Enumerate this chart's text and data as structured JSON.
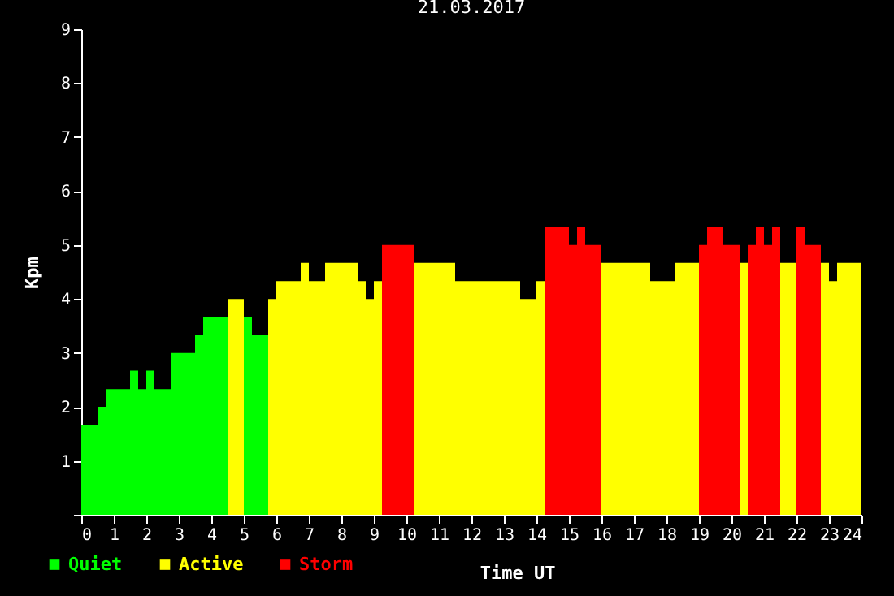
{
  "chart_data": {
    "type": "bar",
    "title": "21.03.2017",
    "xlabel": "Time UT",
    "ylabel": "Kpm",
    "x": [
      0,
      0.25,
      0.5,
      0.75,
      1,
      1.25,
      1.5,
      1.75,
      2,
      2.25,
      2.5,
      2.75,
      3,
      3.25,
      3.5,
      3.75,
      4,
      4.25,
      4.5,
      4.75,
      5,
      5.25,
      5.5,
      5.75,
      6,
      6.25,
      6.5,
      6.75,
      7,
      7.25,
      7.5,
      7.75,
      8,
      8.25,
      8.5,
      8.75,
      9,
      9.25,
      9.5,
      9.75,
      10,
      10.25,
      10.5,
      10.75,
      11,
      11.25,
      11.5,
      11.75,
      12,
      12.25,
      12.5,
      12.75,
      13,
      13.25,
      13.5,
      13.75,
      14,
      14.25,
      14.5,
      14.75,
      15,
      15.25,
      15.5,
      15.75,
      16,
      16.25,
      16.5,
      16.75,
      17,
      17.25,
      17.5,
      17.75,
      18,
      18.25,
      18.5,
      18.75,
      19,
      19.25,
      19.5,
      19.75,
      20,
      20.25,
      20.5,
      20.75,
      21,
      21.25,
      21.5,
      21.75,
      22,
      22.25,
      22.5,
      22.75,
      23,
      23.25,
      23.5,
      23.75
    ],
    "series": [
      {
        "name": "Quiet",
        "color": "#00ff00",
        "values": [
          1.67,
          1.67,
          2,
          2.33,
          2.33,
          2.33,
          2.67,
          2.33,
          2.67,
          2.33,
          2.33,
          3,
          3,
          3,
          3.33,
          3.67,
          3.67,
          3.67,
          null,
          null,
          3.67,
          3.33,
          3.33,
          null,
          null,
          null,
          null,
          null,
          null,
          null,
          null,
          null,
          null,
          null,
          null,
          null,
          null,
          null,
          null,
          null,
          null,
          null,
          null,
          null,
          null,
          null,
          null,
          null,
          null,
          null,
          null,
          null,
          null,
          null,
          null,
          null,
          null,
          null,
          null,
          null,
          null,
          null,
          null,
          null,
          null,
          null,
          null,
          null,
          null,
          null,
          null,
          null,
          null,
          null,
          null,
          null,
          null,
          null,
          null,
          null,
          null,
          null,
          null,
          null,
          null,
          null,
          null,
          null,
          null,
          null,
          null,
          null,
          null,
          null,
          null,
          null
        ]
      },
      {
        "name": "Active",
        "color": "#ffff00",
        "values": [
          null,
          null,
          null,
          null,
          null,
          null,
          null,
          null,
          null,
          null,
          null,
          null,
          null,
          null,
          null,
          null,
          null,
          null,
          4,
          4,
          null,
          null,
          null,
          4,
          4.33,
          4.33,
          4.33,
          4.67,
          4.33,
          4.33,
          4.67,
          4.67,
          4.67,
          4.67,
          4.33,
          4,
          4.33,
          null,
          null,
          null,
          null,
          4.67,
          4.67,
          4.67,
          4.67,
          4.67,
          4.33,
          4.33,
          4.33,
          4.33,
          4.33,
          4.33,
          4.33,
          4.33,
          4,
          4,
          4.33,
          null,
          null,
          null,
          null,
          null,
          null,
          null,
          4.67,
          4.67,
          4.67,
          4.67,
          4.67,
          4.67,
          4.33,
          4.33,
          4.33,
          4.67,
          4.67,
          4.67,
          null,
          null,
          null,
          null,
          null,
          4.67,
          null,
          null,
          null,
          null,
          4.67,
          4.67,
          null,
          null,
          null,
          4.67,
          4.33,
          4.67,
          4.67,
          4.67
        ]
      },
      {
        "name": "Storm",
        "color": "#ff0000",
        "values": [
          null,
          null,
          null,
          null,
          null,
          null,
          null,
          null,
          null,
          null,
          null,
          null,
          null,
          null,
          null,
          null,
          null,
          null,
          null,
          null,
          null,
          null,
          null,
          null,
          null,
          null,
          null,
          null,
          null,
          null,
          null,
          null,
          null,
          null,
          null,
          null,
          null,
          5,
          5,
          5,
          5,
          null,
          null,
          null,
          null,
          null,
          null,
          null,
          null,
          null,
          null,
          null,
          null,
          null,
          null,
          null,
          null,
          5.33,
          5.33,
          5.33,
          5,
          5.33,
          5,
          5,
          null,
          null,
          null,
          null,
          null,
          null,
          null,
          null,
          null,
          null,
          null,
          null,
          5,
          5.33,
          5.33,
          5,
          5,
          null,
          5,
          5.33,
          5,
          5.33,
          null,
          null,
          5.33,
          5,
          5,
          null,
          null,
          null,
          null,
          null
        ]
      }
    ],
    "xlim": [
      0,
      24
    ],
    "xticks": [
      0,
      1,
      2,
      3,
      4,
      5,
      6,
      7,
      8,
      9,
      10,
      11,
      12,
      13,
      14,
      15,
      16,
      17,
      18,
      19,
      20,
      21,
      22,
      23,
      24
    ],
    "ylim": [
      0,
      9
    ],
    "yticks": [
      {
        "value": 0,
        "label": null
      },
      1,
      2,
      3,
      4,
      5,
      6,
      7,
      8,
      9
    ],
    "legend": "bottom left",
    "grid": false
  }
}
